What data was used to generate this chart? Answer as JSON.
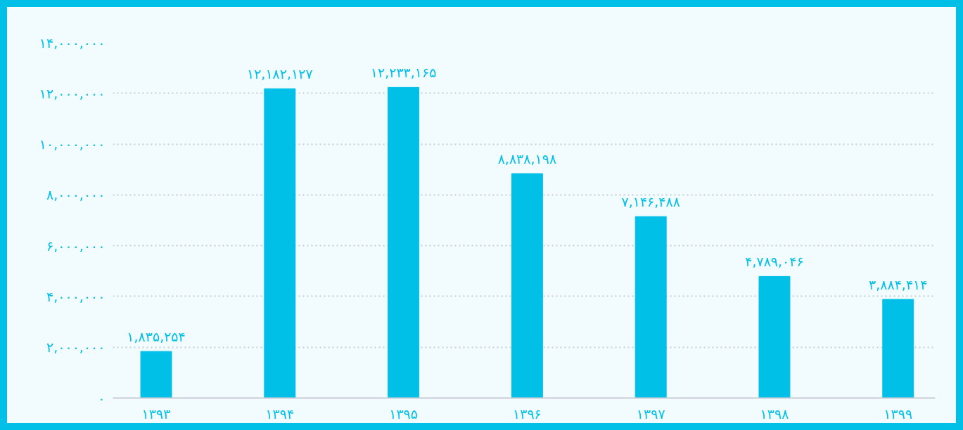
{
  "chart_data": {
    "type": "bar",
    "categories": [
      "۱۳۹۳",
      "۱۳۹۴",
      "۱۳۹۵",
      "۱۳۹۶",
      "۱۳۹۷",
      "۱۳۹۸",
      "۱۳۹۹"
    ],
    "values": [
      1835254,
      12182127,
      12233165,
      8838198,
      7146488,
      4789046,
      3884414
    ],
    "value_labels": [
      "۱,۸۳۵,۲۵۴",
      "۱۲,۱۸۲,۱۲۷",
      "۱۲,۲۳۳,۱۶۵",
      "۸,۸۳۸,۱۹۸",
      "۷,۱۴۶,۴۸۸",
      "۴,۷۸۹,۰۴۶",
      "۳,۸۸۴,۴۱۴"
    ],
    "color": "#00c0e8",
    "ylim": [
      0,
      14000000
    ],
    "yticks": [
      {
        "value": 0,
        "label": "۰"
      },
      {
        "value": 2000000,
        "label": "۲,۰۰۰,۰۰۰"
      },
      {
        "value": 4000000,
        "label": "۴,۰۰۰,۰۰۰"
      },
      {
        "value": 6000000,
        "label": "۶,۰۰۰,۰۰۰"
      },
      {
        "value": 8000000,
        "label": "۸,۰۰۰,۰۰۰"
      },
      {
        "value": 10000000,
        "label": "۱۰,۰۰۰,۰۰۰"
      },
      {
        "value": 12000000,
        "label": "۱۲,۰۰۰,۰۰۰"
      },
      {
        "value": 14000000,
        "label": "۱۴,۰۰۰,۰۰۰"
      }
    ],
    "grid": "y"
  }
}
